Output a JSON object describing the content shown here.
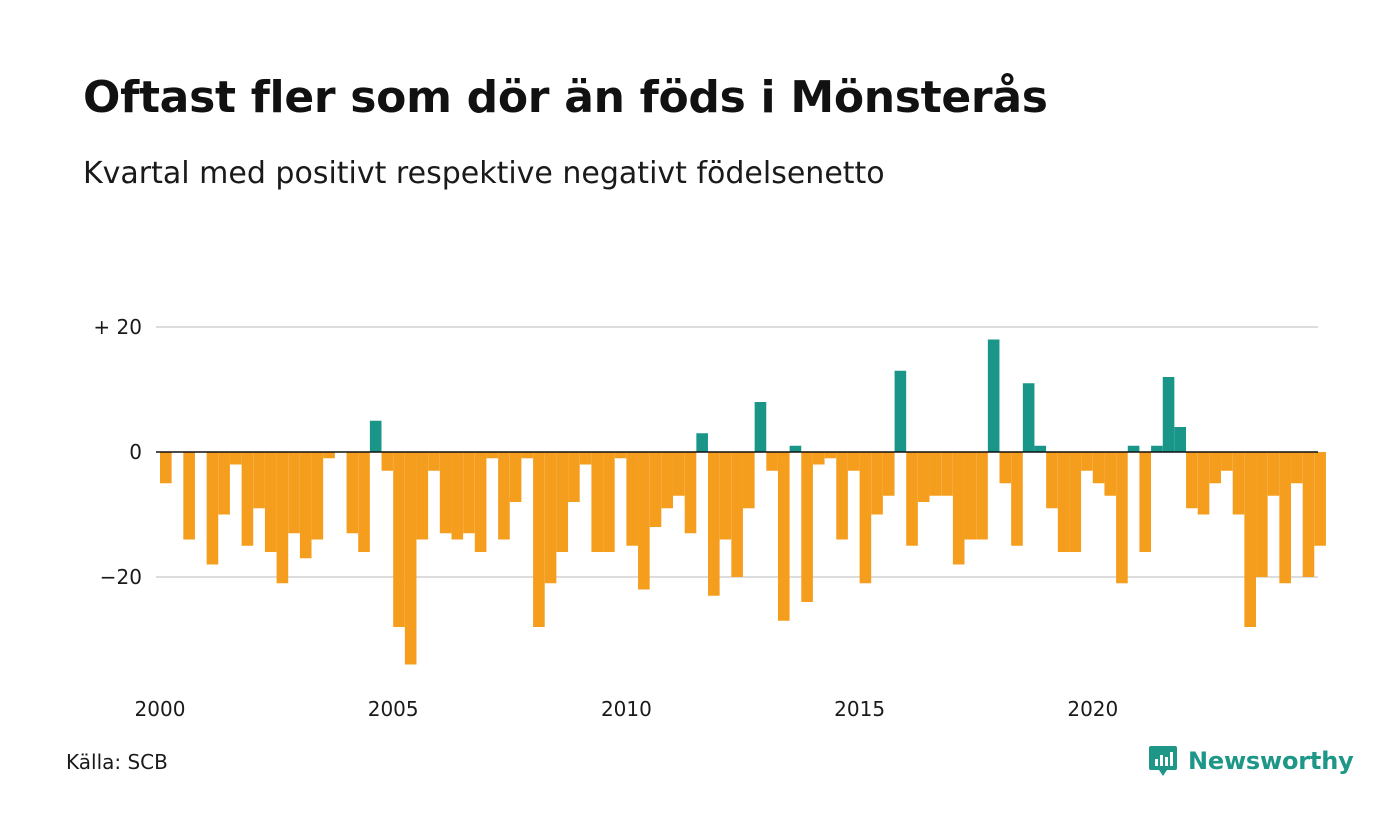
{
  "title": "Oftast fler som dör än föds i Mönsterås",
  "subtitle": "Kvartal med positivt respektive negativt födelsenetto",
  "source": "Källa: SCB",
  "brand": {
    "name": "Newsworthy",
    "icon": "newsworthy-chat-bars-icon",
    "color": "#1e9688"
  },
  "colors": {
    "positive": "#1a9688",
    "negative": "#f59d1c",
    "grid": "#dddddd",
    "zero_line": "#111111"
  },
  "chart_data": {
    "type": "bar",
    "x_start": "2000 Q1",
    "x_ticks": [
      "2000",
      "2005",
      "2010",
      "2015",
      "2020"
    ],
    "y_ticks": [
      {
        "value": 20,
        "label": "+ 20"
      },
      {
        "value": 0,
        "label": "0"
      },
      {
        "value": -20,
        "label": "−20"
      }
    ],
    "ylim": [
      -37,
      20
    ],
    "grid": true,
    "values": [
      -5,
      0,
      -14,
      0,
      -18,
      -10,
      -2,
      -15,
      -9,
      -16,
      -21,
      -13,
      -17,
      -14,
      -1,
      0,
      -13,
      -16,
      5,
      -3,
      -28,
      -34,
      -14,
      -3,
      -13,
      -14,
      -13,
      -16,
      -1,
      -14,
      -8,
      -1,
      -28,
      -21,
      -16,
      -8,
      -2,
      -16,
      -16,
      -1,
      -15,
      -22,
      -12,
      -9,
      -7,
      -13,
      3,
      -23,
      -14,
      -20,
      -9,
      8,
      -3,
      -27,
      1,
      -24,
      -2,
      -1,
      -14,
      -3,
      -21,
      -10,
      -7,
      13,
      -15,
      -8,
      -7,
      -7,
      -18,
      -14,
      -14,
      18,
      -5,
      -15,
      11,
      1,
      -9,
      -16,
      -16,
      -3,
      -5,
      -7,
      -21,
      1,
      -16,
      1,
      12,
      4,
      -9,
      -10,
      -5,
      -3,
      -10,
      -28,
      -20,
      -7,
      -21,
      -5,
      -20,
      -15
    ]
  }
}
